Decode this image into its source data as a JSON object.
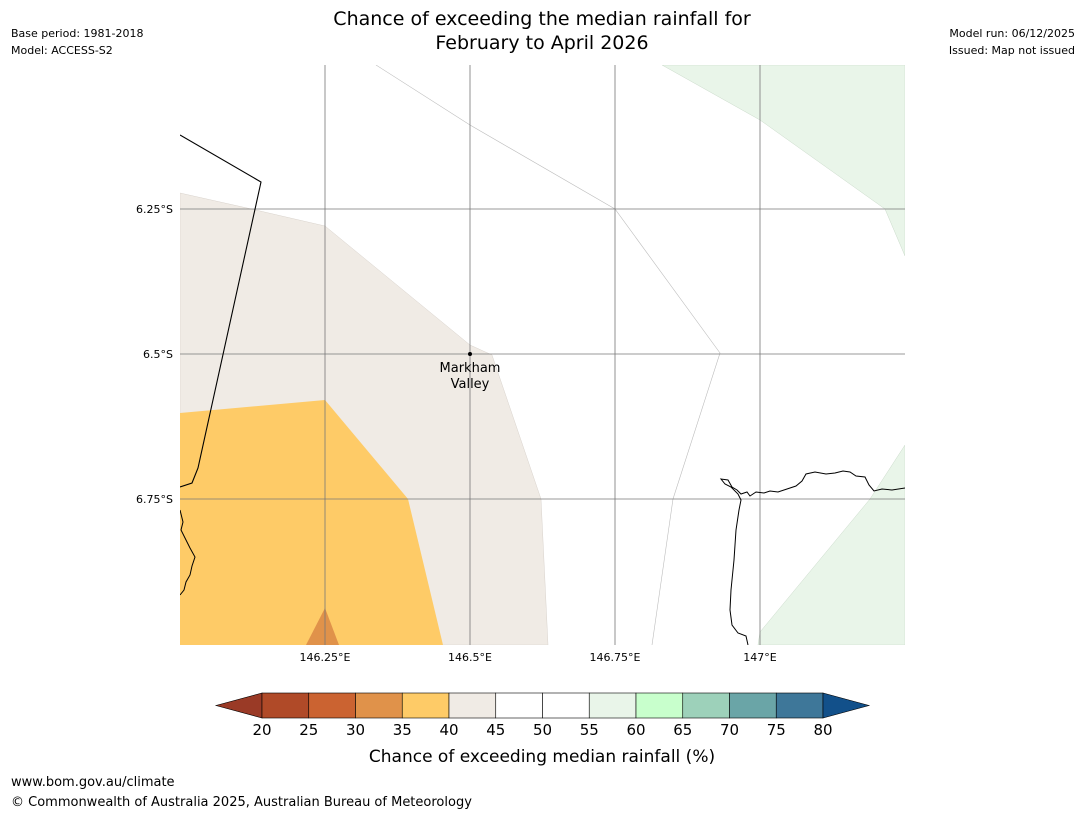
{
  "header": {
    "base_period": "Base period: 1981-2018",
    "model": "Model: ACCESS-S2",
    "title_line1": "Chance of exceeding the median rainfall for",
    "title_line2": "February to April 2026",
    "model_run": "Model run: 06/12/2025",
    "issued": "Issued: Map not issued"
  },
  "map": {
    "lat_labels": [
      "6.25°S",
      "6.5°S",
      "6.75°S"
    ],
    "lon_labels": [
      "146.25°E",
      "146.5°E",
      "146.75°E",
      "147°E"
    ],
    "place": {
      "name_line1": "Markham",
      "name_line2": "Valley"
    },
    "region_classes": [
      {
        "range": "25-30",
        "color": "#e0924a"
      },
      {
        "range": "35-40",
        "color": "#fecb67"
      },
      {
        "range": "40-45",
        "color": "#f0ebe5"
      },
      {
        "range": "45-55",
        "color": "#ffffff"
      },
      {
        "range": "55-60",
        "color": "#e9f5e9"
      }
    ]
  },
  "colorbar": {
    "label": "Chance of exceeding median rainfall (%)",
    "ticks": [
      "20",
      "25",
      "30",
      "35",
      "40",
      "45",
      "50",
      "55",
      "60",
      "65",
      "70",
      "75",
      "80"
    ],
    "below_color": "#9a3a26",
    "above_color": "#12508a",
    "bin_colors": [
      "#b04a28",
      "#cb6331",
      "#e0924a",
      "#fecb67",
      "#f0ebe5",
      "#ffffff",
      "#ffffff",
      "#e9f5e9",
      "#c8ffcc",
      "#9dd1ba",
      "#6aa5a7",
      "#3e7799"
    ]
  },
  "footer": {
    "url": "www.bom.gov.au/climate",
    "copyright": "© Commonwealth of Australia 2025, Australian Bureau of Meteorology"
  }
}
